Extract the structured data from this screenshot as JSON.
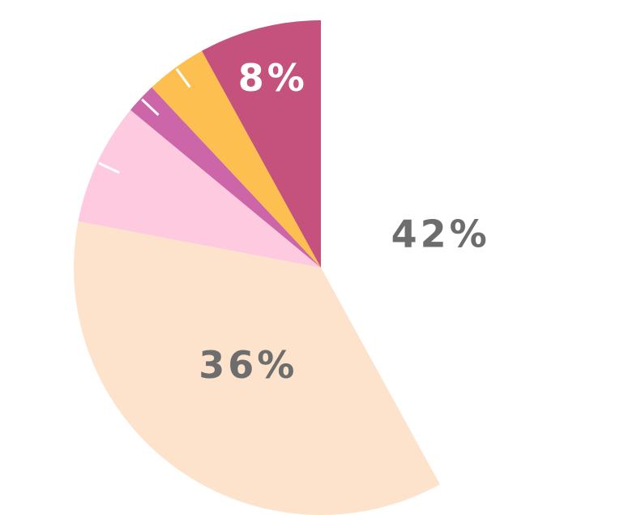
{
  "chart_data": {
    "type": "pie",
    "categories": [
      null,
      null,
      null,
      null,
      null,
      null
    ],
    "values": [
      42,
      36,
      8,
      2,
      4,
      8
    ],
    "value_labels": [
      "42%",
      "36%",
      null,
      null,
      null,
      "8%"
    ],
    "colors": [
      "#ffffff",
      "#fde3cc",
      "#fdcae0",
      "#cc66a8",
      "#fdbf50",
      "#c4527c"
    ],
    "label_colors": [
      "#6d6d6d",
      "#6d6d6d",
      null,
      null,
      null,
      "#ffffff"
    ]
  }
}
